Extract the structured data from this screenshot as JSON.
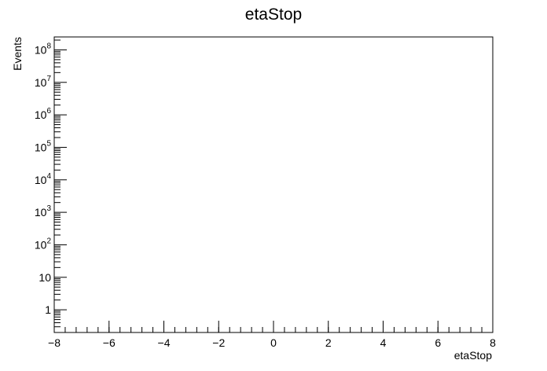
{
  "chart_data": {
    "type": "histogram",
    "title": "etaStop",
    "xlabel": "etaStop",
    "ylabel": "Events",
    "xlim": [
      -8,
      8
    ],
    "ylim": [
      0.2,
      250000000
    ],
    "y_scale": "log",
    "x_ticks": [
      -8,
      -6,
      -4,
      -2,
      0,
      2,
      4,
      6,
      8
    ],
    "x_tick_labels": [
      "−8",
      "−6",
      "−4",
      "−2",
      "0",
      "2",
      "4",
      "6",
      "8"
    ],
    "y_ticks": [
      {
        "value": 1,
        "base": "1",
        "exp": ""
      },
      {
        "value": 10,
        "base": "10",
        "exp": ""
      },
      {
        "value": 100,
        "base": "10",
        "exp": "2"
      },
      {
        "value": 1000,
        "base": "10",
        "exp": "3"
      },
      {
        "value": 10000,
        "base": "10",
        "exp": "4"
      },
      {
        "value": 100000,
        "base": "10",
        "exp": "5"
      },
      {
        "value": 1000000,
        "base": "10",
        "exp": "6"
      },
      {
        "value": 10000000,
        "base": "10",
        "exp": "7"
      },
      {
        "value": 100000000,
        "base": "10",
        "exp": "8"
      }
    ],
    "series": [],
    "grid": false
  }
}
